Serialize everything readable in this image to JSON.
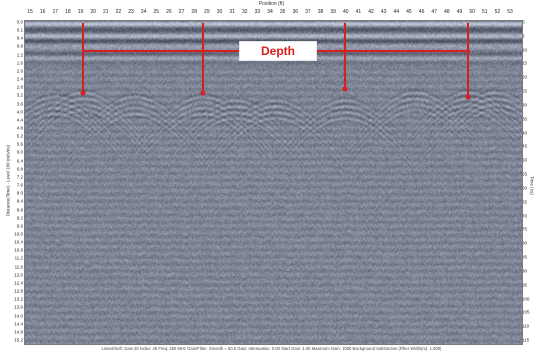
{
  "axes": {
    "top_title": "Position (ft)",
    "top_ticks": [
      "15",
      "16",
      "17",
      "18",
      "19",
      "20",
      "21",
      "22",
      "23",
      "24",
      "25",
      "26",
      "27",
      "28",
      "29",
      "30",
      "31",
      "32",
      "33",
      "34",
      "35",
      "36",
      "37",
      "38",
      "39",
      "40",
      "41",
      "42",
      "43",
      "44",
      "45",
      "46",
      "47",
      "48",
      "49",
      "50",
      "51",
      "52",
      "53"
    ],
    "left_title": "Distance(Time) - Level 100 (m/s/ns)",
    "left_ticks": [
      "0.0",
      "0.1",
      "0.4",
      "0.8",
      "1.2",
      "1.6",
      "2.0",
      "2.4",
      "2.8",
      "3.2",
      "3.6",
      "4.0",
      "4.4",
      "4.8",
      "5.2",
      "5.6",
      "6.0",
      "6.4",
      "6.8",
      "7.2",
      "7.6",
      "8.0",
      "8.4",
      "8.8",
      "9.2",
      "9.6",
      "10.0",
      "10.4",
      "10.8",
      "11.2",
      "11.6",
      "12.0",
      "12.4",
      "12.8",
      "13.2",
      "13.6",
      "14.0",
      "14.4",
      "14.8",
      "15.2"
    ],
    "right_title": "Time (ns)",
    "right_ticks": [
      "0",
      "5",
      "10",
      "15",
      "20",
      "25",
      "30",
      "35",
      "40",
      "45",
      "50",
      "55",
      "60",
      "65",
      "70",
      "75",
      "80",
      "85",
      "90",
      "95",
      "100",
      "105",
      "110",
      "115"
    ]
  },
  "annotation": {
    "depth_label": "Depth",
    "color": "#d81e1e"
  },
  "footer": {
    "info": "Linear/Soft: Gain 20 Index: 45 Freq: 250 MHz Gain/Filter: Smooth = 50.0 Gain: Attenuation: 0.00 Start Gain: 4.00 Maximum Gain: 1000 Background Subtraction (Filter Width(m): 1.000)"
  },
  "colors": {
    "radar_dark": "#1c2430",
    "radar_mid": "#6f7c8b",
    "radar_light": "#d6dde4",
    "border": "#7a7a7a"
  }
}
